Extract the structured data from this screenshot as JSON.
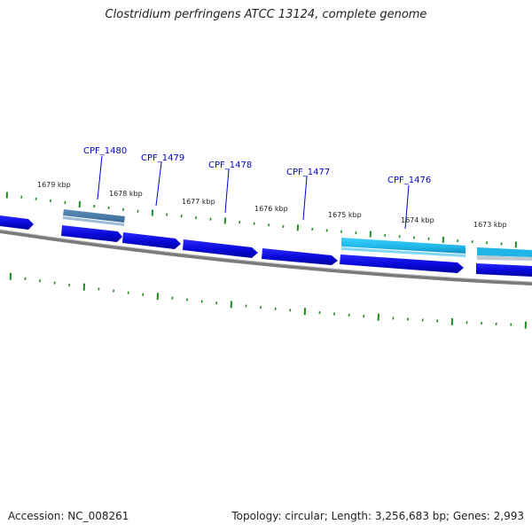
{
  "title": "Clostridium perfringens ATCC 13124, complete genome",
  "footer": {
    "accession": "Accession: NC_008261",
    "summary": "Topology: circular; Length: 3,256,683 bp; Genes: 2,993"
  },
  "colors": {
    "forward_gene": "#0a0adc",
    "highlight_gene": "#1fb5e6",
    "selected_gene": "#4a7fae",
    "backbone": "#7a7a7a",
    "tick": "#1e8c1e",
    "gene_label": "#0000cc"
  },
  "ruler_labels": [
    "1679 kbp",
    "1678 kbp",
    "1677 kbp",
    "1676 kbp",
    "1675 kbp",
    "1674 kbp",
    "1673 kbp"
  ],
  "gene_labels": [
    "CPF_1480",
    "CPF_1479",
    "CPF_1478",
    "CPF_1477",
    "CPF_1476"
  ]
}
